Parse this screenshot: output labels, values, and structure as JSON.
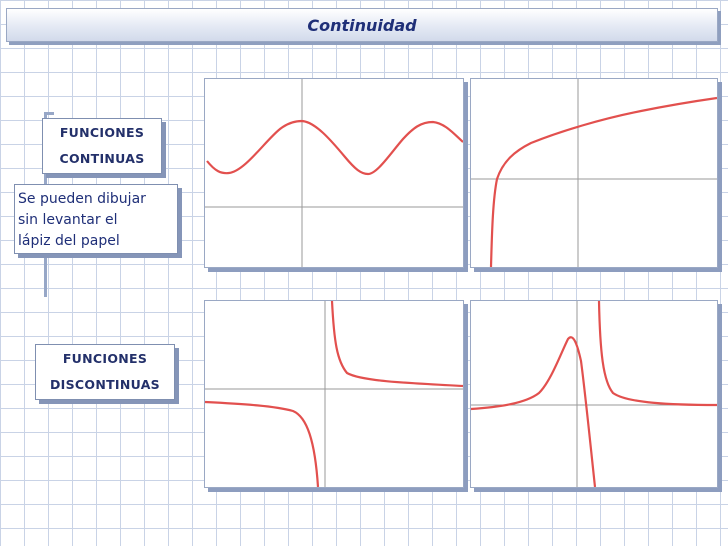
{
  "title": "Continuidad",
  "continuous": {
    "label_line1": "FUNCIONES",
    "label_line2": "CONTINUAS",
    "description_lines": [
      "Se pueden dibujar",
      "sin levantar el",
      "lápiz del papel"
    ]
  },
  "discontinuous": {
    "label_line1": "FUNCIONES",
    "label_line2": "DISCONTINUAS"
  },
  "colors": {
    "curve": "#e2504e",
    "axis": "#9a9a9a",
    "grid": "#c9d3e6",
    "accent": "#1f2f78"
  },
  "graphs": [
    {
      "id": "sine",
      "kind": "periodic wave"
    },
    {
      "id": "log",
      "kind": "logarithmic growth"
    },
    {
      "id": "hyperbola",
      "kind": "vertical asymptote"
    },
    {
      "id": "peak-asymptote",
      "kind": "peak then vertical asymptote"
    }
  ]
}
